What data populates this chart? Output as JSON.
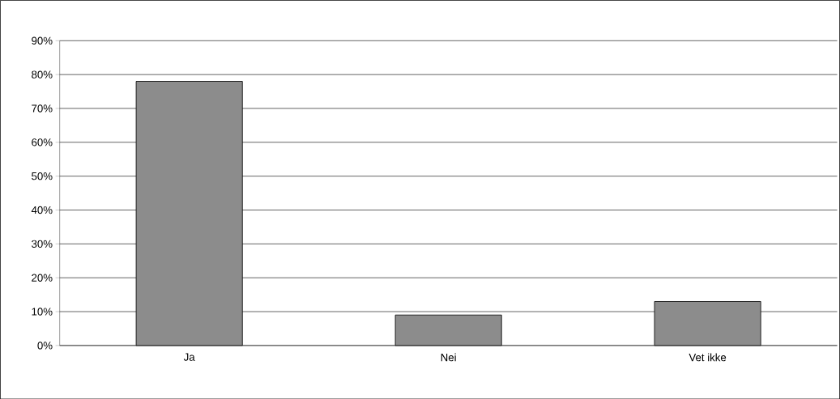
{
  "chart_data": {
    "type": "bar",
    "categories": [
      "Ja",
      "Nei",
      "Vet ikke"
    ],
    "values": [
      78,
      9,
      13
    ],
    "color": "#8c8c8c",
    "ylim": [
      0,
      90
    ],
    "yticks": [
      {
        "value": 0,
        "label": "0%"
      },
      {
        "value": 10,
        "label": "10%"
      },
      {
        "value": 20,
        "label": "20%"
      },
      {
        "value": 30,
        "label": "30%"
      },
      {
        "value": 40,
        "label": "40%"
      },
      {
        "value": 50,
        "label": "50%"
      },
      {
        "value": 60,
        "label": "60%"
      },
      {
        "value": 70,
        "label": "70%"
      },
      {
        "value": 80,
        "label": "80%"
      },
      {
        "value": 90,
        "label": "90%"
      }
    ],
    "grid": "y"
  }
}
